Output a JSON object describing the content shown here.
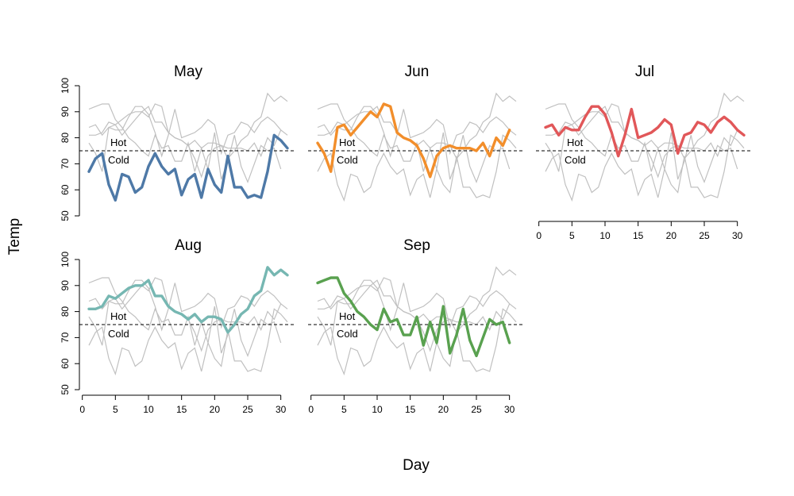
{
  "chart_data": {
    "type": "line",
    "xlabel": "Day",
    "ylabel": "Temp",
    "xlim": [
      1,
      31
    ],
    "ylim": [
      50,
      100
    ],
    "x_ticks": [
      0,
      5,
      10,
      15,
      20,
      25,
      30
    ],
    "y_ticks": [
      50,
      60,
      70,
      80,
      90,
      100
    ],
    "reference_line": {
      "y": 75,
      "label_above": "Hot",
      "label_below": "Cold"
    },
    "colors": {
      "May": "#4e79a7",
      "Jun": "#f28e2b",
      "Jul": "#e15759",
      "Aug": "#76b7b2",
      "Sep": "#59a14f",
      "other_months": "#c0c0c0"
    },
    "series": [
      {
        "name": "May",
        "x": [
          1,
          2,
          3,
          4,
          5,
          6,
          7,
          8,
          9,
          10,
          11,
          12,
          13,
          14,
          15,
          16,
          17,
          18,
          19,
          20,
          21,
          22,
          23,
          24,
          25,
          26,
          27,
          28,
          29,
          30,
          31
        ],
        "values": [
          67,
          72,
          74,
          62,
          56,
          66,
          65,
          59,
          61,
          69,
          74,
          69,
          66,
          68,
          58,
          64,
          66,
          57,
          68,
          62,
          59,
          73,
          61,
          61,
          57,
          58,
          57,
          67,
          81,
          79,
          76
        ]
      },
      {
        "name": "Jun",
        "x": [
          1,
          2,
          3,
          4,
          5,
          6,
          7,
          8,
          9,
          10,
          11,
          12,
          13,
          14,
          15,
          16,
          17,
          18,
          19,
          20,
          21,
          22,
          23,
          24,
          25,
          26,
          27,
          28,
          29,
          30
        ],
        "values": [
          78,
          74,
          67,
          84,
          85,
          81,
          84,
          87,
          90,
          88,
          93,
          92,
          82,
          80,
          79,
          77,
          72,
          65,
          73,
          76,
          77,
          76,
          76,
          76,
          75,
          78,
          73,
          80,
          77,
          83
        ]
      },
      {
        "name": "Jul",
        "x": [
          1,
          2,
          3,
          4,
          5,
          6,
          7,
          8,
          9,
          10,
          11,
          12,
          13,
          14,
          15,
          16,
          17,
          18,
          19,
          20,
          21,
          22,
          23,
          24,
          25,
          26,
          27,
          28,
          29,
          30,
          31
        ],
        "values": [
          84,
          85,
          81,
          84,
          83,
          83,
          88,
          92,
          92,
          89,
          82,
          73,
          81,
          91,
          80,
          81,
          82,
          84,
          87,
          85,
          74,
          81,
          82,
          86,
          85,
          82,
          86,
          88,
          86,
          83,
          81
        ]
      },
      {
        "name": "Aug",
        "x": [
          1,
          2,
          3,
          4,
          5,
          6,
          7,
          8,
          9,
          10,
          11,
          12,
          13,
          14,
          15,
          16,
          17,
          18,
          19,
          20,
          21,
          22,
          23,
          24,
          25,
          26,
          27,
          28,
          29,
          30,
          31
        ],
        "values": [
          81,
          81,
          82,
          86,
          85,
          87,
          89,
          90,
          90,
          92,
          86,
          86,
          82,
          80,
          79,
          77,
          79,
          76,
          78,
          78,
          77,
          72,
          75,
          79,
          81,
          86,
          88,
          97,
          94,
          96,
          94
        ]
      },
      {
        "name": "Sep",
        "x": [
          1,
          2,
          3,
          4,
          5,
          6,
          7,
          8,
          9,
          10,
          11,
          12,
          13,
          14,
          15,
          16,
          17,
          18,
          19,
          20,
          21,
          22,
          23,
          24,
          25,
          26,
          27,
          28,
          29,
          30
        ],
        "values": [
          91,
          92,
          93,
          93,
          87,
          84,
          80,
          78,
          75,
          73,
          81,
          76,
          77,
          71,
          71,
          78,
          67,
          76,
          68,
          82,
          64,
          71,
          81,
          69,
          63,
          70,
          77,
          75,
          76,
          68
        ]
      }
    ]
  },
  "panels": [
    {
      "month": "May",
      "title": "May",
      "show_x_axis": false
    },
    {
      "month": "Jun",
      "title": "Jun",
      "show_x_axis": false
    },
    {
      "month": "Jul",
      "title": "Jul",
      "show_x_axis": true
    },
    {
      "month": "Aug",
      "title": "Aug",
      "show_x_axis": true
    },
    {
      "month": "Sep",
      "title": "Sep",
      "show_x_axis": true
    }
  ]
}
